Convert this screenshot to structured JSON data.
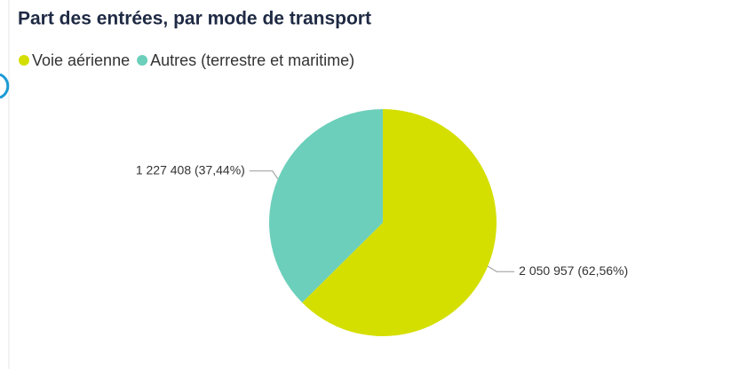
{
  "chart_data": {
    "type": "pie",
    "title": "Part des entrées, par mode de transport",
    "categories": [
      "Voie aérienne",
      "Autres (terrestre et maritime)"
    ],
    "values": [
      2050957,
      1227408
    ],
    "value_labels": [
      "2 050 957 (62,56%)",
      "1 227 408 (37,44%)"
    ],
    "colors": [
      "#d4df00",
      "#6ccfbb"
    ]
  }
}
